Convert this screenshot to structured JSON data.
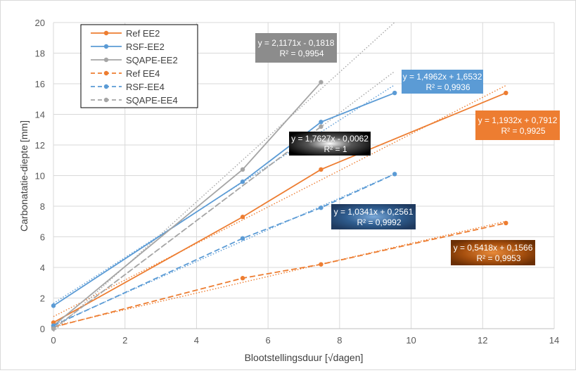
{
  "chart_data": {
    "type": "line",
    "title": "",
    "xlabel": "Blootstellingsduur  [√dagen]",
    "ylabel": "Carbonatatie-diepte  [mm]",
    "xlim": [
      0,
      14
    ],
    "ylim": [
      0,
      20
    ],
    "xticks": [
      "0",
      "2",
      "4",
      "6",
      "8",
      "10",
      "12",
      "14"
    ],
    "yticks": [
      "0",
      "2",
      "4",
      "6",
      "8",
      "10",
      "12",
      "14",
      "16",
      "18",
      "20"
    ],
    "grid": "vertical and horizontal gridlines",
    "legend_position": "top-left",
    "series": [
      {
        "name": "Ref EE2",
        "color": "#ED7D31",
        "dash": "solid",
        "x": [
          0,
          5.29,
          7.48,
          12.65
        ],
        "y": [
          0.4,
          7.3,
          10.4,
          15.4
        ]
      },
      {
        "name": "RSF-EE2",
        "color": "#5B9BD5",
        "dash": "solid",
        "x": [
          0,
          5.29,
          7.48,
          9.54
        ],
        "y": [
          1.5,
          9.6,
          13.5,
          15.4
        ]
      },
      {
        "name": "SQAPE-EE2",
        "color": "#A5A5A5",
        "dash": "solid",
        "x": [
          0,
          5.29,
          7.48
        ],
        "y": [
          0.2,
          10.4,
          16.1
        ]
      },
      {
        "name": "Ref EE4",
        "color": "#ED7D31",
        "dash": "dashed",
        "x": [
          0,
          5.29,
          7.48,
          12.65
        ],
        "y": [
          0.1,
          3.3,
          4.2,
          6.9
        ]
      },
      {
        "name": "RSF-EE4",
        "color": "#5B9BD5",
        "dash": "dashed",
        "x": [
          0,
          5.29,
          7.48,
          9.54
        ],
        "y": [
          0.2,
          5.9,
          7.9,
          10.1
        ]
      },
      {
        "name": "SQAPE-EE4",
        "color": "#A5A5A5",
        "dash": "dashed",
        "x": [
          0,
          7.48
        ],
        "y": [
          0.0,
          13.2
        ]
      }
    ],
    "trendlines": [
      {
        "series": "Ref EE2",
        "color": "#ED7D31",
        "slope": 1.1932,
        "intercept": 0.7912,
        "x_end": 12.65
      },
      {
        "series": "RSF-EE2",
        "color": "#5B9BD5",
        "slope": 1.4962,
        "intercept": 1.6532,
        "x_end": 9.54
      },
      {
        "series": "SQAPE-EE2",
        "color": "#A5A5A5",
        "slope": 2.1171,
        "intercept": -0.1818,
        "x_end": 9.54
      },
      {
        "series": "Ref EE4",
        "color": "#ED7D31",
        "slope": 0.5418,
        "intercept": 0.1566,
        "x_end": 12.65
      },
      {
        "series": "RSF-EE4",
        "color": "#5B9BD5",
        "slope": 1.0341,
        "intercept": 0.2561,
        "x_end": 9.54
      },
      {
        "series": "SQAPE-EE4",
        "color": "#A5A5A5",
        "slope": 1.7627,
        "intercept": -0.0062,
        "x_end": 9.54
      }
    ],
    "annotations": [
      {
        "eq": "y = 2,1171x - 0,1818",
        "r2": "R² = 0,9954",
        "style": "gray"
      },
      {
        "eq": "y = 1,4962x + 1,6532",
        "r2": "R² = 0,9936",
        "style": "blue"
      },
      {
        "eq": "y = 1,1932x + 0,7912",
        "r2": "R² = 0,9925",
        "style": "orange"
      },
      {
        "eq": "y = 1,7627x - 0,0062",
        "r2": "R² = 1",
        "style": "black-radial"
      },
      {
        "eq": "y = 1,0341x + 0,2561",
        "r2": "R² = 0,9992",
        "style": "navy-radial"
      },
      {
        "eq": "y = 0,5418x + 0,1566",
        "r2": "R² = 0,9953",
        "style": "brown-radial"
      }
    ]
  }
}
